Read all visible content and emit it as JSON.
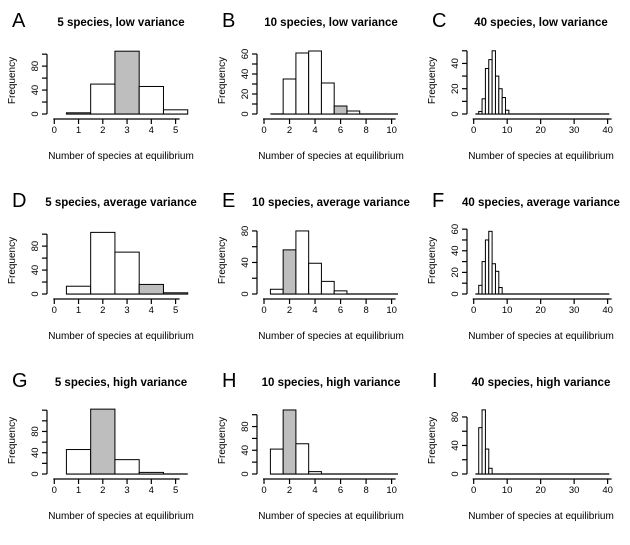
{
  "page": {
    "background": "#ffffff"
  },
  "colors": {
    "bar_white": "#ffffff",
    "bar_gray": "#bebebe",
    "stroke": "#000000",
    "text": "#000000"
  },
  "chart_data": [
    {
      "type": "bar",
      "panel_label": "A",
      "title": "5 species, low variance",
      "xlabel": "Number of species at equilibrium",
      "ylabel": "Frequency",
      "x": [
        1,
        2,
        3,
        4,
        5
      ],
      "values": [
        2,
        50,
        105,
        46,
        7
      ],
      "gray_x": 3,
      "x_ticks": [
        0,
        1,
        2,
        3,
        4,
        5
      ],
      "x_range": [
        -0.3,
        5.8
      ],
      "baseline": [
        0.5,
        5.5
      ],
      "y_ticks": [
        0,
        20,
        40,
        60,
        80,
        100
      ],
      "y_labeled": [
        0,
        40,
        80
      ],
      "y_max": 112,
      "grid": false,
      "legend": false
    },
    {
      "type": "bar",
      "panel_label": "B",
      "title": "10 species, low variance",
      "xlabel": "Number of species at equilibrium",
      "ylabel": "Frequency",
      "x": [
        2,
        3,
        4,
        5,
        6,
        7
      ],
      "values": [
        35,
        61,
        63,
        31,
        8,
        3
      ],
      "gray_x": 6,
      "x_ticks": [
        0,
        2,
        4,
        6,
        8,
        10
      ],
      "x_range": [
        -0.55,
        11.05
      ],
      "baseline": [
        0.5,
        10.5
      ],
      "y_ticks": [
        0,
        10,
        20,
        30,
        40,
        50,
        60
      ],
      "y_labeled": [
        0,
        20,
        40,
        60
      ],
      "y_max": 67,
      "grid": false,
      "legend": false
    },
    {
      "type": "bar",
      "panel_label": "C",
      "title": "40 species, low variance",
      "xlabel": "Number of species at equilibrium",
      "ylabel": "Frequency",
      "x": [
        2,
        3,
        4,
        5,
        6,
        7,
        8,
        9,
        10
      ],
      "values": [
        2,
        12,
        36,
        43,
        50,
        30,
        20,
        13,
        3
      ],
      "gray_x": null,
      "x_ticks": [
        0,
        10,
        20,
        30,
        40
      ],
      "x_range": [
        -2,
        42.2
      ],
      "baseline": [
        0.5,
        40.5
      ],
      "y_ticks": [
        0,
        10,
        20,
        30,
        40,
        50
      ],
      "y_labeled": [
        0,
        20,
        40
      ],
      "y_max": 53,
      "grid": false,
      "legend": false
    },
    {
      "type": "bar",
      "panel_label": "D",
      "title": "5 species, average variance",
      "xlabel": "Number of species at equilibrium",
      "ylabel": "Frequency",
      "x": [
        1,
        2,
        3,
        4,
        5
      ],
      "values": [
        13,
        103,
        70,
        16,
        2
      ],
      "gray_x": 4,
      "x_ticks": [
        0,
        1,
        2,
        3,
        4,
        5
      ],
      "x_range": [
        -0.3,
        5.8
      ],
      "baseline": [
        0.5,
        5.5
      ],
      "y_ticks": [
        0,
        20,
        40,
        60,
        80,
        100
      ],
      "y_labeled": [
        0,
        40,
        80
      ],
      "y_max": 112,
      "grid": false,
      "legend": false
    },
    {
      "type": "bar",
      "panel_label": "E",
      "title": "10 species, average variance",
      "xlabel": "Number of species at equilibrium",
      "ylabel": "Frequency",
      "x": [
        1,
        2,
        3,
        4,
        5,
        6
      ],
      "values": [
        6,
        56,
        80,
        39,
        16,
        4
      ],
      "gray_x": 2,
      "x_ticks": [
        0,
        2,
        4,
        6,
        8,
        10
      ],
      "x_range": [
        -0.55,
        11.05
      ],
      "baseline": [
        0.5,
        10.5
      ],
      "y_ticks": [
        0,
        20,
        40,
        60,
        80
      ],
      "y_labeled": [
        0,
        40,
        80
      ],
      "y_max": 85,
      "grid": false,
      "legend": false
    },
    {
      "type": "bar",
      "panel_label": "F",
      "title": "40 species, average variance",
      "xlabel": "Number of species at equilibrium",
      "ylabel": "Frequency",
      "x": [
        2,
        3,
        4,
        5,
        6,
        7,
        8
      ],
      "values": [
        8,
        30,
        50,
        58,
        28,
        21,
        6
      ],
      "gray_x": null,
      "x_ticks": [
        0,
        10,
        20,
        30,
        40
      ],
      "x_range": [
        -2,
        42.2
      ],
      "baseline": [
        0.5,
        40.5
      ],
      "y_ticks": [
        0,
        10,
        20,
        30,
        40,
        50,
        60
      ],
      "y_labeled": [
        0,
        20,
        40,
        60
      ],
      "y_max": 62,
      "grid": false,
      "legend": false
    },
    {
      "type": "bar",
      "panel_label": "G",
      "title": "5 species, high variance",
      "xlabel": "Number of species at equilibrium",
      "ylabel": "Frequency",
      "x": [
        1,
        2,
        3,
        4
      ],
      "values": [
        46,
        122,
        27,
        3
      ],
      "gray_x": 2,
      "x_ticks": [
        0,
        1,
        2,
        3,
        4,
        5
      ],
      "x_range": [
        -0.3,
        5.8
      ],
      "baseline": [
        0.5,
        5.5
      ],
      "y_ticks": [
        0,
        20,
        40,
        60,
        80,
        100,
        120
      ],
      "y_labeled": [
        0,
        40,
        80
      ],
      "y_max": 126,
      "grid": false,
      "legend": false
    },
    {
      "type": "bar",
      "panel_label": "H",
      "title": "10 species, high variance",
      "xlabel": "Number of species at equilibrium",
      "ylabel": "Frequency",
      "x": [
        1,
        2,
        3,
        4
      ],
      "values": [
        42,
        108,
        51,
        4
      ],
      "gray_x": 2,
      "x_ticks": [
        0,
        2,
        4,
        6,
        8,
        10
      ],
      "x_range": [
        -0.55,
        11.05
      ],
      "baseline": [
        0.5,
        10.5
      ],
      "y_ticks": [
        0,
        20,
        40,
        60,
        80,
        100
      ],
      "y_labeled": [
        0,
        40,
        80
      ],
      "y_max": 113,
      "grid": false,
      "legend": false
    },
    {
      "type": "bar",
      "panel_label": "I",
      "title": "40 species, high variance",
      "xlabel": "Number of species at equilibrium",
      "ylabel": "Frequency",
      "x": [
        2,
        3,
        4,
        5
      ],
      "values": [
        65,
        90,
        35,
        8
      ],
      "gray_x": null,
      "x_ticks": [
        0,
        10,
        20,
        30,
        40
      ],
      "x_range": [
        -2,
        42.2
      ],
      "baseline": [
        0.5,
        40.5
      ],
      "y_ticks": [
        0,
        20,
        40,
        60,
        80
      ],
      "y_labeled": [
        0,
        40,
        80
      ],
      "y_max": 94,
      "grid": false,
      "legend": false
    }
  ]
}
